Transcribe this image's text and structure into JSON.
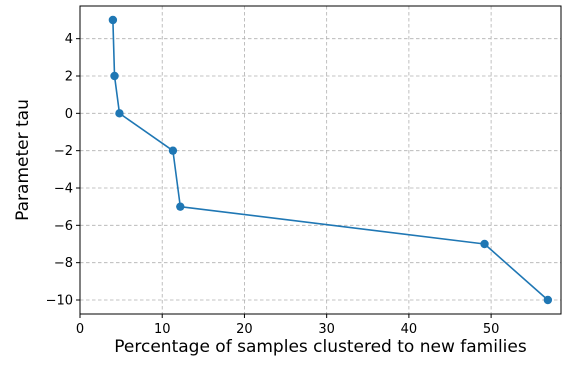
{
  "chart_data": {
    "type": "line",
    "title": "",
    "xlabel": "Percentage of samples clustered to new families",
    "ylabel": "Parameter tau",
    "xlim": [
      0,
      58.5
    ],
    "ylim": [
      -10.75,
      5.75
    ],
    "xticks": [
      0,
      10,
      20,
      30,
      40,
      50
    ],
    "yticks": [
      4,
      2,
      0,
      -2,
      -4,
      -6,
      -8,
      -10
    ],
    "xtick_labels": [
      "0",
      "10",
      "20",
      "30",
      "40",
      "50"
    ],
    "ytick_labels": [
      "4",
      "2",
      "0",
      "−2",
      "−4",
      "−6",
      "−8",
      "−10"
    ],
    "grid": true,
    "grid_style": "dashed",
    "legend": "none",
    "series": [
      {
        "color": "#1f77b4",
        "marker": "circle",
        "x": [
          4.0,
          4.2,
          4.8,
          11.3,
          12.2,
          49.2,
          56.9
        ],
        "y": [
          5,
          2,
          0,
          -2,
          -5,
          -7,
          -10
        ]
      }
    ]
  }
}
